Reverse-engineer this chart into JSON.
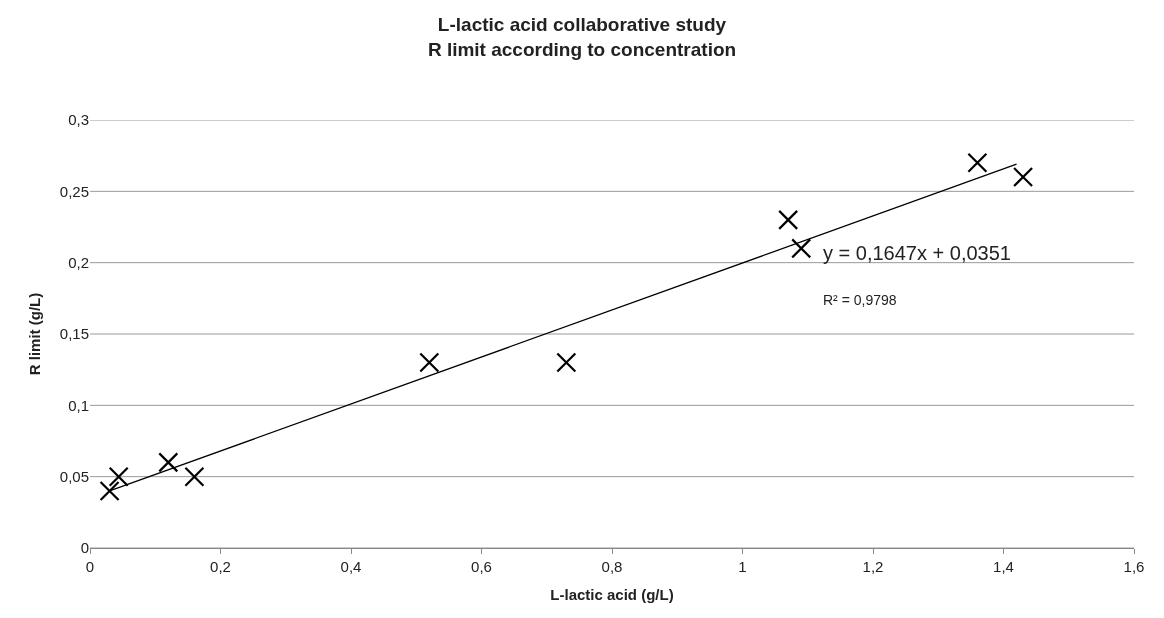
{
  "chart_data": {
    "type": "scatter",
    "title": "L-lactic acid collaborative study\nR limit according to concentration",
    "xlabel": "L-lactic acid (g/L)",
    "ylabel": "R limit (g/L)",
    "series": [
      {
        "color": "#000000",
        "marker": "cross",
        "x": [
          0.03,
          0.044,
          0.12,
          0.16,
          0.52,
          0.73,
          1.07,
          1.09,
          1.36,
          1.43
        ],
        "values": [
          0.04,
          0.05,
          0.06,
          0.05,
          0.13,
          0.13,
          0.23,
          0.21,
          0.27,
          0.26
        ]
      },
      {
        "type": "line",
        "color": "#000000",
        "marker": "none",
        "line_style": "solid",
        "x": [
          0.03,
          1.42
        ],
        "values": [
          0.04,
          0.269
        ]
      }
    ],
    "annotations": [
      "y = 0,1647x + 0,0351",
      "R² = 0,9798"
    ],
    "xlim": [
      0,
      1.6
    ],
    "xticks": [
      0,
      {
        "value": 0.2,
        "label": "0,2"
      },
      {
        "value": 0.4,
        "label": "0,4"
      },
      {
        "value": 0.6,
        "label": "0,6"
      },
      {
        "value": 0.8,
        "label": "0,8"
      },
      1,
      {
        "value": 1.2,
        "label": "1,2"
      },
      {
        "value": 1.4,
        "label": "1,4"
      },
      {
        "value": 1.6,
        "label": "1,6"
      }
    ],
    "ylim": [
      0,
      0.3
    ],
    "yticks": [
      0,
      {
        "value": 0.05,
        "label": "0,05"
      },
      {
        "value": 0.1,
        "label": "0,1"
      },
      {
        "value": 0.15,
        "label": "0,15"
      },
      {
        "value": 0.2,
        "label": "0,2"
      },
      {
        "value": 0.25,
        "label": "0,25"
      },
      {
        "value": 0.3,
        "label": "0,3"
      }
    ],
    "grid": "y"
  }
}
